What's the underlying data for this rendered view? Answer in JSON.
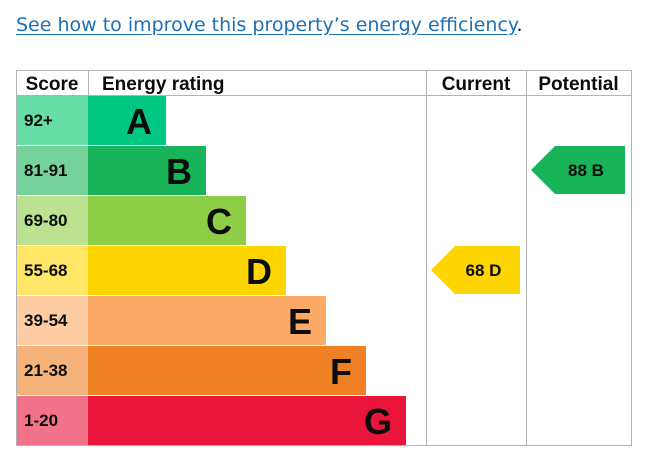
{
  "intro": {
    "link_text": "See how to improve this property’s energy efficiency",
    "trailing": "."
  },
  "chart_data": {
    "type": "table",
    "columns": [
      "Score",
      "Energy rating",
      "Current",
      "Potential"
    ],
    "bands": [
      {
        "score": "92+",
        "letter": "A",
        "bar_color": "#00c781",
        "score_bg": "#66dda7"
      },
      {
        "score": "81-91",
        "letter": "B",
        "bar_color": "#19b459",
        "score_bg": "#75d29b"
      },
      {
        "score": "69-80",
        "letter": "C",
        "bar_color": "#8dce46",
        "score_bg": "#bbe290"
      },
      {
        "score": "55-68",
        "letter": "D",
        "bar_color": "#ffd500",
        "score_bg": "#ffe666"
      },
      {
        "score": "39-54",
        "letter": "E",
        "bar_color": "#fcaa65",
        "score_bg": "#fdcca3"
      },
      {
        "score": "21-38",
        "letter": "F",
        "bar_color": "#ef8023",
        "score_bg": "#f5b37b"
      },
      {
        "score": "1-20",
        "letter": "G",
        "bar_color": "#e9153b",
        "score_bg": "#f27389"
      }
    ],
    "current": {
      "value": 68,
      "letter": "D",
      "label": "68 D",
      "color": "#ffd500"
    },
    "potential": {
      "value": 88,
      "letter": "B",
      "label": "88 B",
      "color": "#19b459"
    }
  }
}
